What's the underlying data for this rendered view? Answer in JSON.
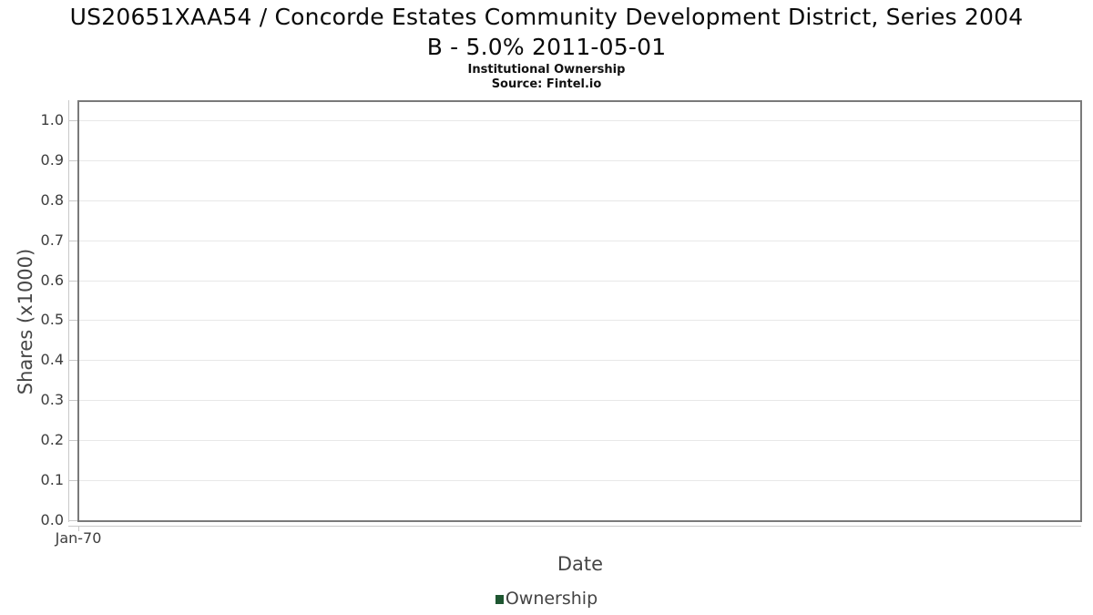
{
  "header": {
    "title_lines": [
      "US20651XAA54 / Concorde Estates Community Development District, Series 2004",
      "B - 5.0% 2011-05-01"
    ],
    "subtitle": "Institutional Ownership",
    "source": "Source: Fintel.io"
  },
  "chart_data": {
    "type": "line",
    "title": "US20651XAA54 / Concorde Estates Community Development District, Series 2004 B - 5.0% 2011-05-01",
    "subtitle": "Institutional Ownership",
    "source": "Source: Fintel.io",
    "xlabel": "Date",
    "ylabel": "Shares (x1000)",
    "x_ticks": [
      "Jan-70"
    ],
    "y_ticks": [
      "1.0",
      "0.9",
      "0.8",
      "0.7",
      "0.6",
      "0.5",
      "0.4",
      "0.3",
      "0.2",
      "0.1",
      "0.0"
    ],
    "ylim": [
      0.0,
      1.05
    ],
    "grid": "horizontal",
    "legend": {
      "position": "bottom",
      "entries": [
        {
          "label": "Ownership",
          "color": "#1e5631"
        }
      ]
    },
    "series": [
      {
        "name": "Ownership",
        "x": [],
        "values": []
      }
    ]
  },
  "colors": {
    "background": "#ffffff",
    "plot_border": "#7a7a7a",
    "axis_line": "#c9c9c9",
    "gridline": "#e8e8e8",
    "tick_label": "#3d3d3d",
    "axis_label": "#464646",
    "legend_text": "#444444",
    "ownership_green": "#1e5631"
  }
}
